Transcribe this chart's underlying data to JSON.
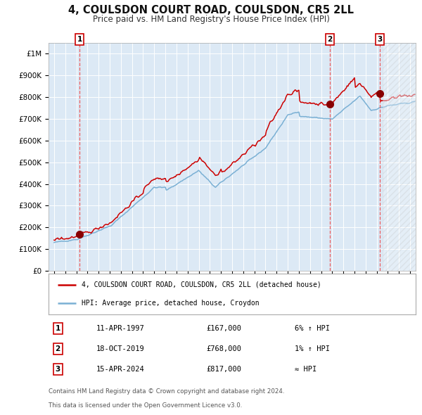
{
  "title": "4, COULSDON COURT ROAD, COULSDON, CR5 2LL",
  "subtitle": "Price paid vs. HM Land Registry's House Price Index (HPI)",
  "red_label": "4, COULSDON COURT ROAD, COULSDON, CR5 2LL (detached house)",
  "blue_label": "HPI: Average price, detached house, Croydon",
  "footer1": "Contains HM Land Registry data © Crown copyright and database right 2024.",
  "footer2": "This data is licensed under the Open Government Licence v3.0.",
  "sale_points": [
    {
      "num": 1,
      "date": "11-APR-1997",
      "price": 167000,
      "desc": "6% ↑ HPI",
      "year": 1997.28
    },
    {
      "num": 2,
      "date": "18-OCT-2019",
      "price": 768000,
      "desc": "1% ↑ HPI",
      "year": 2019.8
    },
    {
      "num": 3,
      "date": "15-APR-2024",
      "price": 817000,
      "desc": "≈ HPI",
      "year": 2024.29
    }
  ],
  "ylim": [
    0,
    1050000
  ],
  "xlim_start": 1994.5,
  "xlim_end": 2027.5,
  "future_start": 2024.5,
  "bg_color": "#dce9f5",
  "grid_color": "#ffffff",
  "red_color": "#cc0000",
  "blue_color": "#7ab0d4",
  "vline_color": "#ee4444",
  "marker_color": "#880000",
  "title_fontsize": 10.5,
  "subtitle_fontsize": 8.5
}
